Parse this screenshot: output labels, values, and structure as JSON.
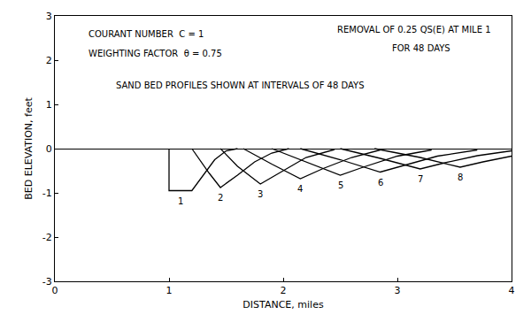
{
  "chart_data": {
    "type": "line",
    "xlabel": "DISTANCE, miles",
    "ylabel": "BED ELEVATION, feet",
    "annotations": [
      "COURANT NUMBER  C = 1",
      "WEIGHTING FACTOR  θ = 0.75",
      "REMOVAL OF 0.25 QS(E) AT MILE 1",
      "FOR 48 DAYS",
      "SAND BED PROFILES SHOWN AT INTERVALS OF 48 DAYS"
    ],
    "xlim": [
      0,
      4
    ],
    "xticks": [
      0,
      1,
      2,
      3,
      4
    ],
    "ylim": [
      -3,
      3
    ],
    "yticks": [
      -3,
      -2,
      -1,
      0,
      1,
      2,
      3
    ],
    "grid": false,
    "color": "#000000",
    "series": [
      {
        "name": "1",
        "x": [
          1.0,
          1.0,
          1.2,
          1.3,
          1.4,
          1.5,
          1.6
        ],
        "values": [
          0,
          -0.95,
          -0.95,
          -0.6,
          -0.25,
          -0.05,
          0
        ]
      },
      {
        "name": "2",
        "x": [
          1.2,
          1.35,
          1.45,
          1.6,
          1.75,
          1.9,
          2.05
        ],
        "values": [
          0,
          -0.55,
          -0.88,
          -0.6,
          -0.3,
          -0.1,
          0
        ]
      },
      {
        "name": "3",
        "x": [
          1.45,
          1.6,
          1.8,
          2.0,
          2.2,
          2.45
        ],
        "values": [
          0,
          -0.4,
          -0.8,
          -0.5,
          -0.2,
          -0.02
        ]
      },
      {
        "name": "4",
        "x": [
          1.65,
          1.9,
          2.15,
          2.35,
          2.6,
          2.85
        ],
        "values": [
          0,
          -0.35,
          -0.68,
          -0.45,
          -0.2,
          -0.03
        ]
      },
      {
        "name": "5",
        "x": [
          1.9,
          2.2,
          2.5,
          2.7,
          3.0,
          3.3
        ],
        "values": [
          0,
          -0.3,
          -0.6,
          -0.42,
          -0.17,
          -0.03
        ]
      },
      {
        "name": "6",
        "x": [
          2.15,
          2.5,
          2.85,
          3.05,
          3.35,
          3.7
        ],
        "values": [
          0,
          -0.25,
          -0.53,
          -0.38,
          -0.17,
          -0.03
        ]
      },
      {
        "name": "7",
        "x": [
          2.5,
          2.85,
          3.2,
          3.4,
          3.7,
          4.0
        ],
        "values": [
          0,
          -0.22,
          -0.46,
          -0.33,
          -0.16,
          -0.05
        ]
      },
      {
        "name": "8",
        "x": [
          2.8,
          3.2,
          3.55,
          3.75,
          4.0
        ],
        "values": [
          0,
          -0.2,
          -0.42,
          -0.3,
          -0.17
        ]
      }
    ]
  }
}
